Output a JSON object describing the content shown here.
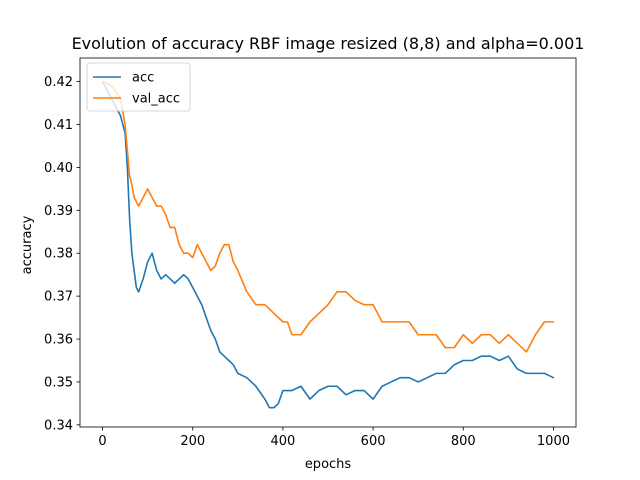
{
  "chart_data": {
    "type": "line",
    "title": "Evolution of accuracy RBF image resized (8,8) and alpha=0.001",
    "xlabel": "epochs",
    "ylabel": "accuracy",
    "xlim": [
      -50,
      1050
    ],
    "ylim": [
      0.3395,
      0.4255
    ],
    "x_ticks": [
      0,
      200,
      400,
      600,
      800,
      1000
    ],
    "y_ticks": [
      0.34,
      0.35,
      0.36,
      0.37,
      0.38,
      0.39,
      0.4,
      0.41,
      0.42
    ],
    "legend_position": "top-left",
    "grid": false,
    "series": [
      {
        "name": "acc",
        "color": "#1f77b4",
        "x": [
          0,
          10,
          20,
          30,
          40,
          50,
          55,
          60,
          65,
          70,
          75,
          80,
          90,
          100,
          110,
          120,
          130,
          140,
          150,
          160,
          170,
          180,
          190,
          200,
          210,
          220,
          230,
          240,
          250,
          260,
          270,
          280,
          290,
          300,
          320,
          340,
          360,
          370,
          380,
          390,
          400,
          420,
          440,
          460,
          480,
          500,
          520,
          540,
          560,
          580,
          600,
          620,
          640,
          660,
          680,
          700,
          720,
          740,
          760,
          780,
          800,
          820,
          840,
          860,
          880,
          900,
          920,
          940,
          960,
          980,
          1000
        ],
        "y": [
          0.42,
          0.418,
          0.416,
          0.414,
          0.412,
          0.408,
          0.4,
          0.388,
          0.38,
          0.376,
          0.372,
          0.371,
          0.374,
          0.378,
          0.38,
          0.376,
          0.374,
          0.375,
          0.374,
          0.373,
          0.374,
          0.375,
          0.374,
          0.372,
          0.37,
          0.368,
          0.365,
          0.362,
          0.36,
          0.357,
          0.356,
          0.355,
          0.354,
          0.352,
          0.351,
          0.349,
          0.346,
          0.344,
          0.344,
          0.345,
          0.348,
          0.348,
          0.349,
          0.346,
          0.348,
          0.349,
          0.349,
          0.347,
          0.348,
          0.348,
          0.346,
          0.349,
          0.35,
          0.351,
          0.351,
          0.35,
          0.351,
          0.352,
          0.352,
          0.354,
          0.355,
          0.355,
          0.356,
          0.356,
          0.355,
          0.356,
          0.353,
          0.352,
          0.352,
          0.352,
          0.351
        ]
      },
      {
        "name": "val_acc",
        "color": "#ff7f0e",
        "x": [
          0,
          20,
          40,
          50,
          55,
          60,
          65,
          70,
          80,
          90,
          100,
          110,
          120,
          130,
          140,
          150,
          160,
          170,
          180,
          190,
          200,
          210,
          220,
          230,
          240,
          250,
          260,
          270,
          280,
          290,
          300,
          320,
          340,
          360,
          380,
          400,
          410,
          420,
          440,
          460,
          480,
          500,
          520,
          540,
          560,
          580,
          600,
          620,
          640,
          660,
          680,
          700,
          720,
          740,
          760,
          780,
          800,
          820,
          840,
          860,
          880,
          900,
          920,
          940,
          960,
          980,
          1000
        ],
        "y": [
          0.42,
          0.419,
          0.416,
          0.41,
          0.404,
          0.398,
          0.396,
          0.393,
          0.391,
          0.393,
          0.395,
          0.393,
          0.391,
          0.391,
          0.389,
          0.386,
          0.386,
          0.382,
          0.38,
          0.38,
          0.379,
          0.382,
          0.38,
          0.378,
          0.376,
          0.377,
          0.38,
          0.382,
          0.382,
          0.378,
          0.376,
          0.371,
          0.368,
          0.368,
          0.366,
          0.364,
          0.364,
          0.361,
          0.361,
          0.364,
          0.366,
          0.368,
          0.371,
          0.371,
          0.369,
          0.368,
          0.368,
          0.364,
          0.364,
          0.364,
          0.364,
          0.361,
          0.361,
          0.361,
          0.358,
          0.358,
          0.361,
          0.359,
          0.361,
          0.361,
          0.359,
          0.361,
          0.359,
          0.357,
          0.361,
          0.364,
          0.364
        ]
      }
    ]
  }
}
